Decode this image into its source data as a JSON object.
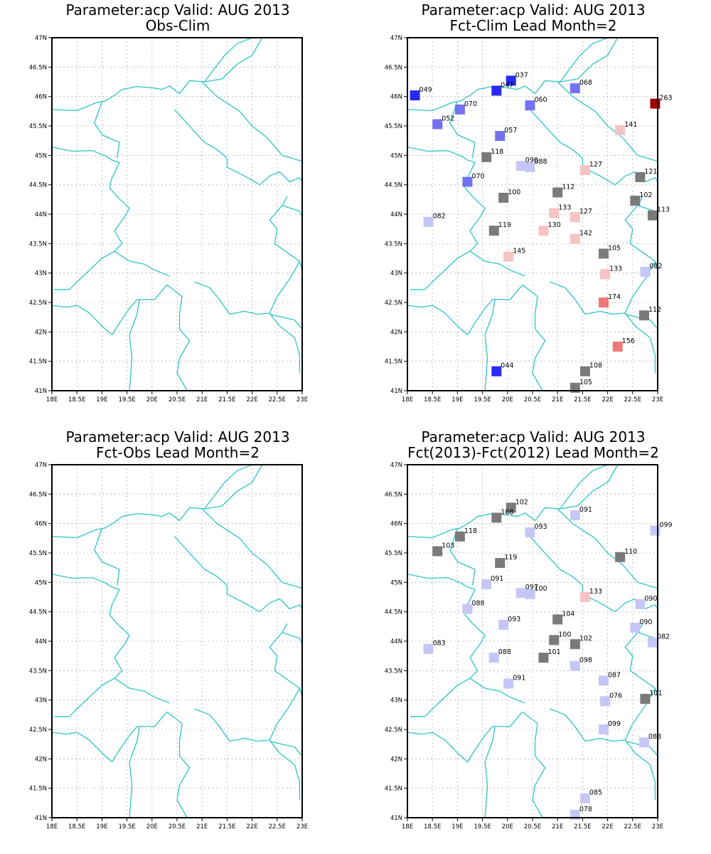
{
  "colors": {
    "background": "#ffffff",
    "border": "#2ec4c4",
    "grid": "#9a9a9a",
    "strong_blue": "#2a2af5",
    "medium_blue": "#7272f2",
    "light_blue": "#c6c6f6",
    "near_normal": "#7a7a7a",
    "light_red": "#f7c3c3",
    "medium_red": "#f07878",
    "dark_red": "#a00000"
  },
  "axes": {
    "lon_ticks": [
      "18E",
      "18.5E",
      "19E",
      "19.5E",
      "20E",
      "20.5E",
      "21E",
      "21.5E",
      "22E",
      "22.5E",
      "23E"
    ],
    "lat_ticks": [
      "47N",
      "46.5N",
      "46N",
      "45.5N",
      "45N",
      "44.5N",
      "44N",
      "43.5N",
      "43N",
      "42.5N",
      "42N",
      "41.5N",
      "41N"
    ],
    "lon_range": [
      18,
      23
    ],
    "lat_range": [
      41,
      47
    ],
    "grid": true
  },
  "panels": [
    {
      "id": "obs-clim",
      "title_line1": "Parameter:acp Valid: AUG 2013",
      "title_line2": "Obs-Clim",
      "stations": []
    },
    {
      "id": "fct-clim",
      "title_line1": "Parameter:acp Valid: AUG 2013",
      "title_line2": "Fct-Clim Lead Month=2",
      "stations": [
        {
          "lon": 18.15,
          "lat": 46.02,
          "label": "049",
          "color": "strong_blue"
        },
        {
          "lon": 20.07,
          "lat": 46.27,
          "label": "037",
          "color": "strong_blue"
        },
        {
          "lon": 19.78,
          "lat": 46.1,
          "label": "047",
          "color": "strong_blue"
        },
        {
          "lon": 21.35,
          "lat": 46.14,
          "label": "068",
          "color": "medium_blue"
        },
        {
          "lon": 22.95,
          "lat": 45.88,
          "label": "263",
          "color": "dark_red"
        },
        {
          "lon": 19.05,
          "lat": 45.78,
          "label": "070",
          "color": "medium_blue"
        },
        {
          "lon": 20.45,
          "lat": 45.85,
          "label": "060",
          "color": "medium_blue"
        },
        {
          "lon": 18.6,
          "lat": 45.53,
          "label": "052",
          "color": "medium_blue"
        },
        {
          "lon": 19.85,
          "lat": 45.33,
          "label": "057",
          "color": "medium_blue"
        },
        {
          "lon": 22.25,
          "lat": 45.43,
          "label": "141",
          "color": "light_red"
        },
        {
          "lon": 19.58,
          "lat": 44.97,
          "label": "118",
          "color": "near_normal"
        },
        {
          "lon": 20.27,
          "lat": 44.82,
          "label": "090",
          "color": "light_blue"
        },
        {
          "lon": 20.45,
          "lat": 44.8,
          "label": "088",
          "color": "light_blue"
        },
        {
          "lon": 21.55,
          "lat": 44.75,
          "label": "127",
          "color": "light_red"
        },
        {
          "lon": 22.65,
          "lat": 44.63,
          "label": "121",
          "color": "near_normal"
        },
        {
          "lon": 19.2,
          "lat": 44.55,
          "label": "070",
          "color": "medium_blue"
        },
        {
          "lon": 21.0,
          "lat": 44.37,
          "label": "112",
          "color": "near_normal"
        },
        {
          "lon": 19.92,
          "lat": 44.28,
          "label": "100",
          "color": "near_normal"
        },
        {
          "lon": 22.55,
          "lat": 44.23,
          "label": "102",
          "color": "near_normal"
        },
        {
          "lon": 20.93,
          "lat": 44.02,
          "label": "133",
          "color": "light_red"
        },
        {
          "lon": 21.35,
          "lat": 43.95,
          "label": "127",
          "color": "light_red"
        },
        {
          "lon": 22.9,
          "lat": 43.98,
          "label": "113",
          "color": "near_normal"
        },
        {
          "lon": 18.42,
          "lat": 43.87,
          "label": "082",
          "color": "light_blue"
        },
        {
          "lon": 19.73,
          "lat": 43.72,
          "label": "119",
          "color": "near_normal"
        },
        {
          "lon": 20.72,
          "lat": 43.72,
          "label": "130",
          "color": "light_red"
        },
        {
          "lon": 21.35,
          "lat": 43.58,
          "label": "142",
          "color": "light_red"
        },
        {
          "lon": 21.92,
          "lat": 43.33,
          "label": "105",
          "color": "near_normal"
        },
        {
          "lon": 20.02,
          "lat": 43.28,
          "label": "145",
          "color": "light_red"
        },
        {
          "lon": 21.95,
          "lat": 42.98,
          "label": "133",
          "color": "light_red"
        },
        {
          "lon": 22.75,
          "lat": 43.02,
          "label": "082",
          "color": "light_blue"
        },
        {
          "lon": 21.92,
          "lat": 42.5,
          "label": "174",
          "color": "medium_red"
        },
        {
          "lon": 22.73,
          "lat": 42.28,
          "label": "112",
          "color": "near_normal"
        },
        {
          "lon": 22.2,
          "lat": 41.75,
          "label": "156",
          "color": "medium_red"
        },
        {
          "lon": 19.78,
          "lat": 41.33,
          "label": "044",
          "color": "strong_blue"
        },
        {
          "lon": 21.55,
          "lat": 41.33,
          "label": "108",
          "color": "near_normal"
        },
        {
          "lon": 21.35,
          "lat": 41.05,
          "label": "105",
          "color": "near_normal"
        }
      ]
    },
    {
      "id": "fct-obs",
      "title_line1": "Parameter:acp Valid: AUG 2013",
      "title_line2": "Fct-Obs Lead Month=2",
      "stations": []
    },
    {
      "id": "fct-fct",
      "title_line1": "Parameter:acp Valid: AUG 2013",
      "title_line2": "Fct(2013)-Fct(2012) Lead Month=2",
      "stations": [
        {
          "lon": 20.07,
          "lat": 46.27,
          "label": "102",
          "color": "near_normal"
        },
        {
          "lon": 19.78,
          "lat": 46.1,
          "label": "108",
          "color": "near_normal"
        },
        {
          "lon": 21.35,
          "lat": 46.14,
          "label": "091",
          "color": "light_blue"
        },
        {
          "lon": 22.95,
          "lat": 45.88,
          "label": "099",
          "color": "light_blue"
        },
        {
          "lon": 19.05,
          "lat": 45.78,
          "label": "118",
          "color": "near_normal"
        },
        {
          "lon": 20.45,
          "lat": 45.85,
          "label": "093",
          "color": "light_blue"
        },
        {
          "lon": 18.6,
          "lat": 45.53,
          "label": "103",
          "color": "near_normal"
        },
        {
          "lon": 19.85,
          "lat": 45.33,
          "label": "119",
          "color": "near_normal"
        },
        {
          "lon": 22.25,
          "lat": 45.43,
          "label": "110",
          "color": "near_normal"
        },
        {
          "lon": 19.58,
          "lat": 44.97,
          "label": "091",
          "color": "light_blue"
        },
        {
          "lon": 20.27,
          "lat": 44.82,
          "label": "097",
          "color": "light_blue"
        },
        {
          "lon": 20.45,
          "lat": 44.8,
          "label": "100",
          "color": "light_blue"
        },
        {
          "lon": 21.55,
          "lat": 44.75,
          "label": "133",
          "color": "light_red"
        },
        {
          "lon": 22.65,
          "lat": 44.63,
          "label": "090",
          "color": "light_blue"
        },
        {
          "lon": 19.2,
          "lat": 44.55,
          "label": "088",
          "color": "light_blue"
        },
        {
          "lon": 21.0,
          "lat": 44.37,
          "label": "104",
          "color": "near_normal"
        },
        {
          "lon": 19.92,
          "lat": 44.28,
          "label": "093",
          "color": "light_blue"
        },
        {
          "lon": 22.55,
          "lat": 44.23,
          "label": "090",
          "color": "light_blue"
        },
        {
          "lon": 20.93,
          "lat": 44.02,
          "label": "100",
          "color": "near_normal"
        },
        {
          "lon": 21.35,
          "lat": 43.95,
          "label": "102",
          "color": "near_normal"
        },
        {
          "lon": 22.9,
          "lat": 43.98,
          "label": "082",
          "color": "light_blue"
        },
        {
          "lon": 18.42,
          "lat": 43.87,
          "label": "083",
          "color": "light_blue"
        },
        {
          "lon": 19.73,
          "lat": 43.72,
          "label": "088",
          "color": "light_blue"
        },
        {
          "lon": 20.72,
          "lat": 43.72,
          "label": "101",
          "color": "near_normal"
        },
        {
          "lon": 21.35,
          "lat": 43.58,
          "label": "098",
          "color": "light_blue"
        },
        {
          "lon": 21.92,
          "lat": 43.33,
          "label": "087",
          "color": "light_blue"
        },
        {
          "lon": 20.02,
          "lat": 43.28,
          "label": "091",
          "color": "light_blue"
        },
        {
          "lon": 21.95,
          "lat": 42.98,
          "label": "076",
          "color": "light_blue"
        },
        {
          "lon": 22.75,
          "lat": 43.02,
          "label": "101",
          "color": "near_normal"
        },
        {
          "lon": 21.92,
          "lat": 42.5,
          "label": "099",
          "color": "light_blue"
        },
        {
          "lon": 22.73,
          "lat": 42.28,
          "label": "088",
          "color": "light_blue"
        },
        {
          "lon": 21.55,
          "lat": 41.33,
          "label": "085",
          "color": "light_blue"
        },
        {
          "lon": 21.35,
          "lat": 41.05,
          "label": "078",
          "color": "light_blue"
        }
      ]
    }
  ]
}
